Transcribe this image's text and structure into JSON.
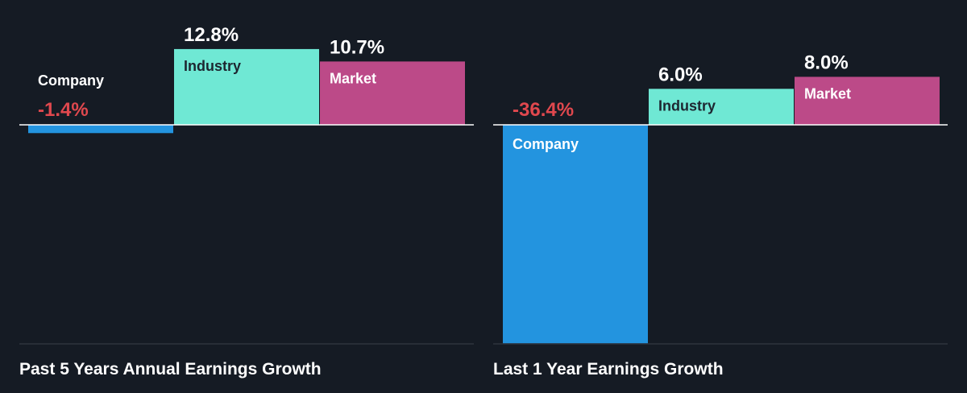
{
  "colors": {
    "background": "#151b24",
    "company": "#2394df",
    "industry": "#6fe8d4",
    "market": "#bc4a88",
    "negative_text": "#e0484e",
    "positive_text": "#ffffff",
    "axis": "#ffffff",
    "divider": "#3a404a"
  },
  "chart_data": [
    {
      "type": "bar",
      "title": "Past 5 Years Annual Earnings Growth",
      "categories": [
        "Company",
        "Industry",
        "Market"
      ],
      "values": [
        -1.4,
        12.8,
        10.7
      ],
      "value_labels": [
        "-1.4%",
        "12.8%",
        "10.7%"
      ],
      "unit": "%"
    },
    {
      "type": "bar",
      "title": "Last 1 Year Earnings Growth",
      "categories": [
        "Company",
        "Industry",
        "Market"
      ],
      "values": [
        -36.4,
        6.0,
        8.0
      ],
      "value_labels": [
        "-36.4%",
        "6.0%",
        "8.0%"
      ],
      "unit": "%"
    }
  ]
}
